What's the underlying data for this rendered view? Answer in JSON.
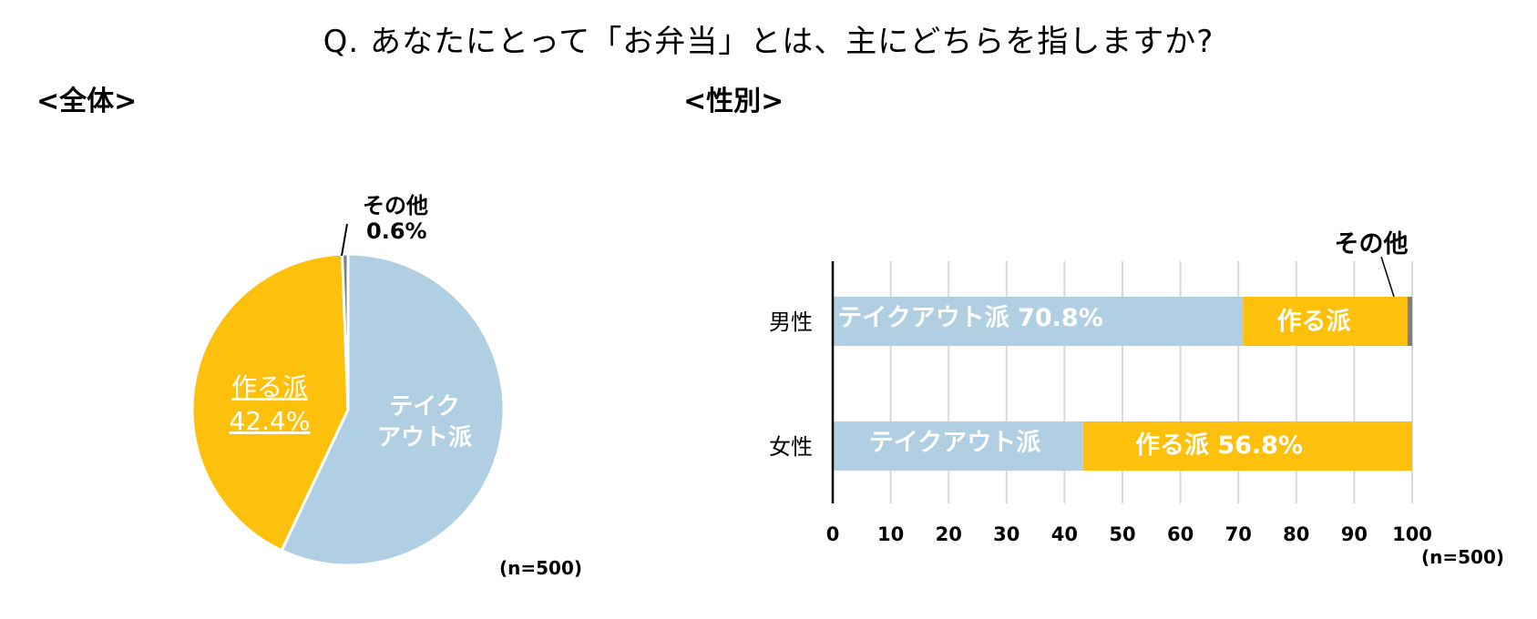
{
  "title": "Q. あなたにとって「お弁当」とは、主にどちらを指しますか?",
  "sections": {
    "overall": "<全体>",
    "gender": "<性別>"
  },
  "n_overall": "(n=500)",
  "n_gender": "(n=500)",
  "colors": {
    "takeout": "#b1cfe2",
    "make": "#fdc00c",
    "other": "#7f7f7f"
  },
  "chart_data": [
    {
      "type": "pie",
      "title": "<全体>",
      "slices": [
        {
          "label": "テイクアウト派",
          "value": 57.0,
          "display": ""
        },
        {
          "label": "作る派",
          "value": 42.4,
          "display": "42.4%"
        },
        {
          "label": "その他",
          "value": 0.6,
          "display": "0.6%"
        }
      ],
      "labels": {
        "takeout_line1": "テイク",
        "takeout_line2": "アウト派",
        "make_name": "作る派",
        "make_value": "42.4%",
        "other_name": "その他",
        "other_value": "0.6%"
      },
      "note": "(n=500)"
    },
    {
      "type": "bar",
      "orientation": "horizontal",
      "stacked": true,
      "title": "<性別>",
      "categories": [
        "男性",
        "女性"
      ],
      "series": [
        {
          "name": "テイクアウト派",
          "values": [
            70.8,
            43.2
          ]
        },
        {
          "name": "作る派",
          "values": [
            28.4,
            56.8
          ]
        },
        {
          "name": "その他",
          "values": [
            0.8,
            0.0
          ]
        }
      ],
      "bar_labels": {
        "male_takeout": "テイクアウト派 70.8%",
        "male_make": "作る派",
        "female_takeout": "テイクアウト派",
        "female_make": "作る派 56.8%",
        "other_callout": "その他"
      },
      "xlim": [
        0,
        100
      ],
      "xticks": [
        "0",
        "10",
        "20",
        "30",
        "40",
        "50",
        "60",
        "70",
        "80",
        "90",
        "100"
      ],
      "grid": true,
      "note": "(n=500)"
    }
  ]
}
